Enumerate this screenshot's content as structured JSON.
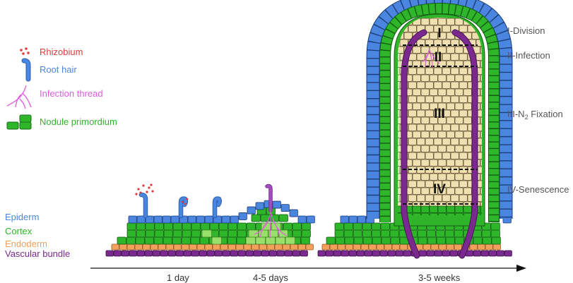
{
  "legend": {
    "rhizobium": "Rhizobium",
    "root_hair": "Root hair",
    "infection_thread": "Infection thread",
    "nodule_primordium": "Nodule primordium"
  },
  "tissues": {
    "epiderm": "Epiderm",
    "cortex": "Cortex",
    "endoderm": "Endoderm",
    "vascular": "Vascular bundle"
  },
  "timeline": {
    "day1": "1 day",
    "days45": "4-5 days",
    "weeks35": "3-5 weeks"
  },
  "zones": {
    "z1_roman": "I",
    "z2_roman": "II",
    "z3_roman": "III",
    "z4_roman": "IV",
    "z1_label": "I-Division",
    "z2_label": "II-Infection",
    "z3_label_pre": "III-N",
    "z3_label_sub": "2",
    "z3_label_post": " Fixation",
    "z4_label": "IV-Senescence"
  },
  "colors": {
    "epiderm": "#4a86e0",
    "cortex": "#2fb52a",
    "light_green": "#98e06a",
    "endoderm": "#f2a05c",
    "vascular": "#7a2a8e",
    "zone_fill": "#f0dfb0",
    "infection": "#e05ae0",
    "rhizobium": "#e23a3a",
    "epiderm_text": "#4a86e0",
    "cortex_text": "#2fb52a",
    "endoderm_text": "#f2a05c",
    "vascular_text": "#7a2a8e",
    "zone_text": "#555555"
  }
}
